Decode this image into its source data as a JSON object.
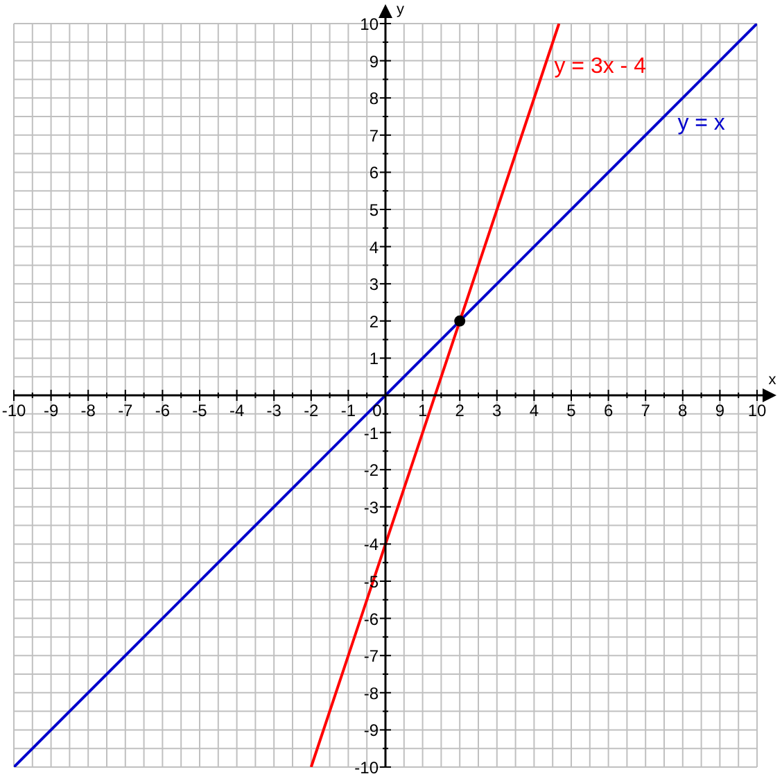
{
  "chart_data": {
    "type": "line",
    "xlabel": "x",
    "ylabel": "y",
    "series": [
      {
        "name": "y = x",
        "color": "#0000cc",
        "x": [
          -10,
          10
        ],
        "values": [
          -10,
          10
        ]
      },
      {
        "name": "y = 3x - 4",
        "color": "#ff0000",
        "x": [
          -2,
          4.67
        ],
        "values": [
          -10,
          10
        ]
      },
      {
        "type": "scatter",
        "color": "#000000",
        "marker": "circle",
        "x": [
          2
        ],
        "values": [
          2
        ]
      }
    ],
    "xlim": [
      -10,
      10
    ],
    "ylim": [
      -10,
      10
    ],
    "xticks": [
      -10,
      {
        "value": -9.5,
        "label": null
      },
      -9,
      {
        "value": -8.5,
        "label": null
      },
      -8,
      {
        "value": -7.5,
        "label": null
      },
      -7,
      {
        "value": -6.5,
        "label": null
      },
      -6,
      {
        "value": -5.5,
        "label": null
      },
      -5,
      {
        "value": -4.5,
        "label": null
      },
      -4,
      {
        "value": -3.5,
        "label": null
      },
      -3,
      {
        "value": -2.5,
        "label": null
      },
      -2,
      {
        "value": -1.5,
        "label": null
      },
      -1,
      {
        "value": -0.5,
        "label": null
      },
      0,
      {
        "value": 0.5,
        "label": null
      },
      1,
      {
        "value": 1.5,
        "label": null
      },
      2,
      {
        "value": 2.5,
        "label": null
      },
      3,
      {
        "value": 3.5,
        "label": null
      },
      4,
      {
        "value": 4.5,
        "label": null
      },
      5,
      {
        "value": 5.5,
        "label": null
      },
      6,
      {
        "value": 6.5,
        "label": null
      },
      7,
      {
        "value": 7.5,
        "label": null
      },
      8,
      {
        "value": 8.5,
        "label": null
      },
      9,
      {
        "value": 9.5,
        "label": null
      },
      10
    ],
    "yticks": [
      -10,
      {
        "value": -9.5,
        "label": null
      },
      -9,
      {
        "value": -8.5,
        "label": null
      },
      -8,
      {
        "value": -7.5,
        "label": null
      },
      -7,
      {
        "value": -6.5,
        "label": null
      },
      -6,
      {
        "value": -5.5,
        "label": null
      },
      -5,
      {
        "value": -4.5,
        "label": null
      },
      -4,
      {
        "value": -3.5,
        "label": null
      },
      -3,
      {
        "value": -2.5,
        "label": null
      },
      -2,
      {
        "value": -1.5,
        "label": null
      },
      -1,
      {
        "value": -0.5,
        "label": null
      },
      {
        "value": 0,
        "label": null
      },
      {
        "value": 0.5,
        "label": null
      },
      1,
      {
        "value": 1.5,
        "label": null
      },
      2,
      {
        "value": 2.5,
        "label": null
      },
      3,
      {
        "value": 3.5,
        "label": null
      },
      4,
      {
        "value": 4.5,
        "label": null
      },
      5,
      {
        "value": 5.5,
        "label": null
      },
      6,
      {
        "value": 6.5,
        "label": null
      },
      7,
      {
        "value": 7.5,
        "label": null
      },
      8,
      {
        "value": 8.5,
        "label": null
      },
      9,
      {
        "value": 9.5,
        "label": null
      },
      10
    ],
    "grid": true,
    "marker": "none",
    "line_style": "solid"
  }
}
